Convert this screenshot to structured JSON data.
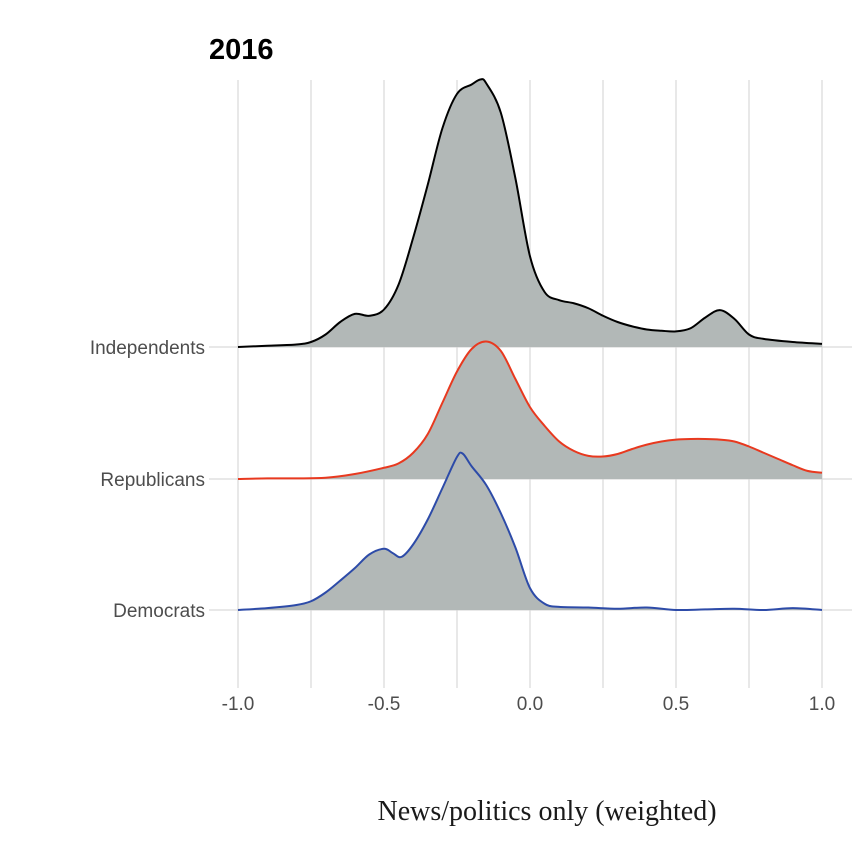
{
  "chart_data": {
    "type": "area",
    "title": "2016",
    "xlabel": "News/politics only (weighted)",
    "ylabel": "",
    "xlim": [
      -1.0,
      1.0
    ],
    "x_ticks": [
      "-1.0",
      "-0.5",
      "0.0",
      "0.5",
      "1.0"
    ],
    "x_tick_values": [
      -1.0,
      -0.5,
      0.0,
      0.5,
      1.0
    ],
    "categories": [
      "Democrats",
      "Republicans",
      "Independents"
    ],
    "grid": true,
    "fill_color": "#b2b8b7",
    "series": [
      {
        "name": "Democrats",
        "color": "#2d4ba8",
        "x": [
          -1.0,
          -0.9,
          -0.8,
          -0.75,
          -0.7,
          -0.65,
          -0.6,
          -0.55,
          -0.5,
          -0.47,
          -0.44,
          -0.4,
          -0.35,
          -0.3,
          -0.25,
          -0.23,
          -0.2,
          -0.15,
          -0.1,
          -0.05,
          0.0,
          0.05,
          0.1,
          0.2,
          0.3,
          0.4,
          0.5,
          0.6,
          0.7,
          0.8,
          0.9,
          1.0
        ],
        "density": [
          0.0,
          0.03,
          0.08,
          0.14,
          0.28,
          0.47,
          0.67,
          0.89,
          0.98,
          0.91,
          0.85,
          1.05,
          1.45,
          1.95,
          2.45,
          2.5,
          2.3,
          2.0,
          1.55,
          1.0,
          0.35,
          0.1,
          0.05,
          0.04,
          0.02,
          0.04,
          0.0,
          0.01,
          0.02,
          0.0,
          0.03,
          0.0
        ]
      },
      {
        "name": "Republicans",
        "color": "#e8391f",
        "x": [
          -1.0,
          -0.9,
          -0.8,
          -0.7,
          -0.6,
          -0.5,
          -0.45,
          -0.4,
          -0.35,
          -0.3,
          -0.25,
          -0.2,
          -0.15,
          -0.1,
          -0.05,
          0.0,
          0.05,
          0.1,
          0.15,
          0.2,
          0.25,
          0.3,
          0.35,
          0.4,
          0.45,
          0.5,
          0.55,
          0.6,
          0.65,
          0.7,
          0.75,
          0.8,
          0.85,
          0.9,
          0.95,
          1.0
        ],
        "density": [
          0.0,
          0.01,
          0.01,
          0.02,
          0.08,
          0.18,
          0.25,
          0.42,
          0.72,
          1.22,
          1.72,
          2.08,
          2.2,
          2.05,
          1.6,
          1.15,
          0.85,
          0.6,
          0.45,
          0.37,
          0.36,
          0.4,
          0.48,
          0.55,
          0.6,
          0.63,
          0.64,
          0.64,
          0.63,
          0.6,
          0.52,
          0.42,
          0.32,
          0.22,
          0.13,
          0.1
        ]
      },
      {
        "name": "Independents",
        "color": "#000000",
        "x": [
          -1.0,
          -0.9,
          -0.8,
          -0.75,
          -0.7,
          -0.65,
          -0.6,
          -0.55,
          -0.5,
          -0.45,
          -0.4,
          -0.35,
          -0.3,
          -0.25,
          -0.2,
          -0.17,
          -0.15,
          -0.1,
          -0.05,
          0.0,
          0.05,
          0.1,
          0.15,
          0.2,
          0.25,
          0.3,
          0.35,
          0.4,
          0.45,
          0.5,
          0.55,
          0.6,
          0.65,
          0.7,
          0.75,
          0.8,
          0.9,
          1.0
        ],
        "density": [
          0.0,
          0.02,
          0.04,
          0.08,
          0.2,
          0.4,
          0.53,
          0.5,
          0.6,
          1.0,
          1.75,
          2.6,
          3.5,
          4.05,
          4.2,
          4.28,
          4.22,
          3.75,
          2.7,
          1.45,
          0.88,
          0.75,
          0.7,
          0.62,
          0.5,
          0.4,
          0.33,
          0.28,
          0.26,
          0.25,
          0.3,
          0.47,
          0.59,
          0.45,
          0.2,
          0.13,
          0.08,
          0.05
        ]
      }
    ]
  }
}
